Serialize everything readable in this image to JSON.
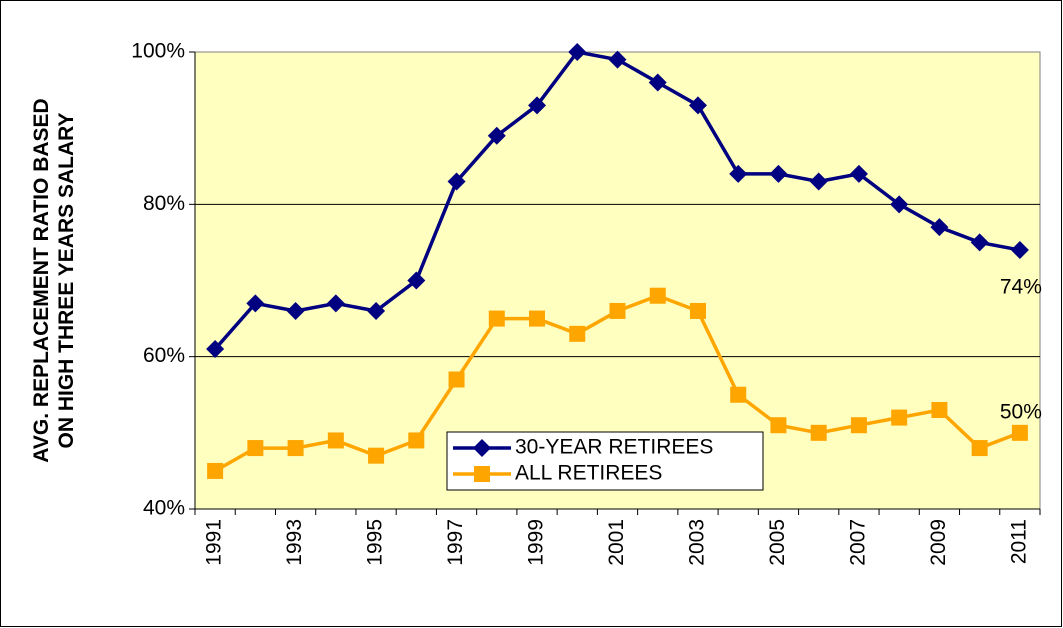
{
  "chart_data": {
    "type": "line",
    "ylabel": [
      "AVG. REPLACEMENT RATIO BASED",
      "ON HIGH THREE YEARS SALARY"
    ],
    "categories": [
      "1991",
      null,
      "1993",
      null,
      "1995",
      null,
      "1997",
      null,
      "1999",
      null,
      "2001",
      null,
      "2003",
      null,
      "2005",
      null,
      "2007",
      null,
      "2009",
      null,
      "2011"
    ],
    "series": [
      {
        "name": "30-YEAR RETIREES",
        "color": "#000080",
        "marker": "diamond",
        "values": [
          61,
          67,
          66,
          67,
          66,
          70,
          83,
          89,
          93,
          100,
          99,
          96,
          93,
          84,
          84,
          83,
          84,
          80,
          77,
          75,
          74
        ],
        "value_labels": [
          null,
          null,
          null,
          null,
          null,
          null,
          null,
          null,
          null,
          null,
          null,
          null,
          null,
          null,
          null,
          null,
          null,
          null,
          null,
          null,
          "74%"
        ]
      },
      {
        "name": "ALL RETIREES",
        "color": "#FFA500",
        "marker": "square",
        "values": [
          45,
          48,
          48,
          49,
          47,
          49,
          57,
          65,
          65,
          63,
          66,
          68,
          66,
          55,
          51,
          50,
          51,
          52,
          53,
          48,
          50
        ],
        "value_labels": [
          null,
          null,
          null,
          null,
          null,
          null,
          null,
          null,
          null,
          null,
          null,
          null,
          null,
          null,
          null,
          null,
          null,
          null,
          null,
          null,
          "50%"
        ]
      }
    ],
    "ylim": [
      40,
      100
    ],
    "yticks": [
      {
        "value": 40,
        "label": "40%"
      },
      {
        "value": 60,
        "label": "60%"
      },
      {
        "value": 80,
        "label": "80%"
      },
      {
        "value": 100,
        "label": "100%"
      }
    ],
    "grid": true,
    "legend": "lower center",
    "plot_background": "#FFFFC0"
  }
}
